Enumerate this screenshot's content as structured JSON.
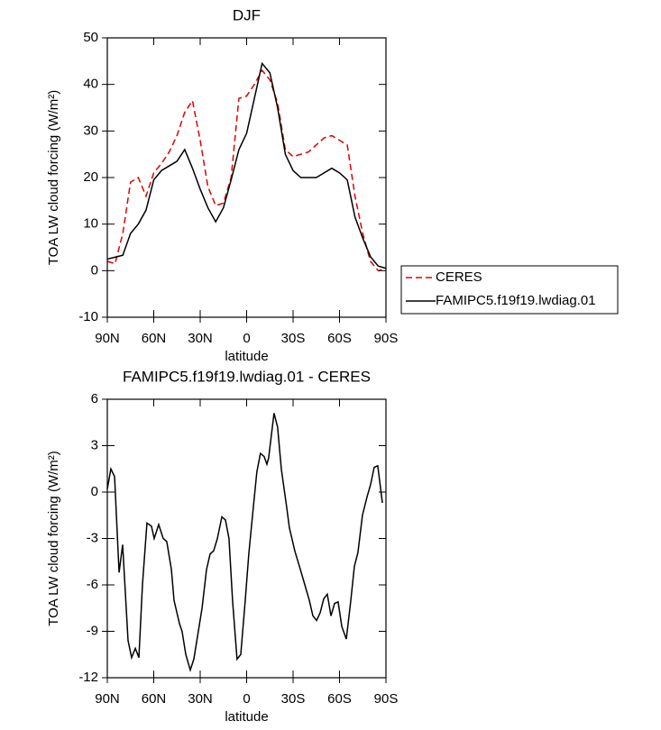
{
  "chart_data": [
    {
      "type": "line",
      "title": "DJF",
      "x_label": "latitude",
      "y_label": "TOA LW cloud forcing (W/m²)",
      "x": [
        90,
        85,
        80,
        75,
        70,
        65,
        60,
        55,
        50,
        45,
        40,
        35,
        30,
        25,
        20,
        15,
        10,
        5,
        0,
        -5,
        -10,
        -15,
        -20,
        -25,
        -30,
        -35,
        -40,
        -45,
        -50,
        -55,
        -60,
        -65,
        -70,
        -75,
        -80,
        -85,
        -90
      ],
      "xlim": [
        90,
        -90
      ],
      "xticks": [
        {
          "value": 90,
          "label": "90N"
        },
        {
          "value": 60,
          "label": "60N"
        },
        {
          "value": 30,
          "label": "30N"
        },
        0,
        {
          "value": -30,
          "label": "30S"
        },
        {
          "value": -60,
          "label": "60S"
        },
        {
          "value": -90,
          "label": "90S"
        }
      ],
      "ylim": [
        -10,
        50
      ],
      "yticks": [
        -10,
        0,
        10,
        20,
        30,
        40,
        50
      ],
      "legend": "right",
      "series": [
        {
          "name": "CERES",
          "color": "#e00000",
          "dash": true,
          "values": [
            2,
            1.5,
            8,
            19,
            20,
            16,
            21,
            23,
            25.5,
            29,
            34,
            36.5,
            28,
            18,
            14,
            14.5,
            20,
            37,
            37.5,
            40,
            43,
            41,
            36,
            26,
            24.5,
            25,
            25.5,
            27,
            28.5,
            29,
            28,
            27,
            16,
            8,
            2,
            0,
            0.5
          ]
        },
        {
          "name": "FAMIPC5.f19f19.lwdiag.01",
          "color": "#000000",
          "dash": false,
          "values": [
            2.5,
            2.9,
            3.3,
            8,
            10,
            13,
            19.5,
            21.5,
            22.5,
            23.5,
            26,
            22,
            17.5,
            13.5,
            10.5,
            13.5,
            19.5,
            26,
            29.5,
            37,
            44.5,
            42.5,
            35,
            25,
            21.5,
            20,
            20,
            20,
            21,
            22,
            21,
            19.5,
            11.5,
            7,
            3,
            1,
            0.5
          ]
        }
      ]
    },
    {
      "type": "line",
      "title": "FAMIPC5.f19f19.lwdiag.01 - CERES",
      "x_label": "latitude",
      "y_label": "TOA LW cloud forcing (W/m²)",
      "x": [
        90,
        87.7,
        85.3,
        82.4,
        80.1,
        76.6,
        74.3,
        71.9,
        69.6,
        67.3,
        64.4,
        61.5,
        59.7,
        56.8,
        53.9,
        51.6,
        48.6,
        46.9,
        43.4,
        41.7,
        39.3,
        36.4,
        34.1,
        31.2,
        28.8,
        25.9,
        23.6,
        21.3,
        18.9,
        16,
        13.7,
        11.4,
        9.1,
        6.2,
        3.8,
        0.9,
        -1.4,
        -4.3,
        -6.6,
        -8.9,
        -11.3,
        -13.1,
        -14.2,
        -17.7,
        -20,
        -22.4,
        -25.9,
        -27.6,
        -31.1,
        -34.7,
        -37.6,
        -40.5,
        -42.8,
        -45.2,
        -47.5,
        -49.8,
        -52.1,
        -54.5,
        -56.8,
        -59.1,
        -61.5,
        -64.4,
        -67.3,
        -69.6,
        -71.9,
        -74.8,
        -77.8,
        -80.1,
        -82.4,
        -84.7,
        -87.7
      ],
      "xlim": [
        90,
        -90
      ],
      "xticks": [
        {
          "value": 90,
          "label": "90N"
        },
        {
          "value": 60,
          "label": "60N"
        },
        {
          "value": 30,
          "label": "30N"
        },
        0,
        {
          "value": -30,
          "label": "30S"
        },
        {
          "value": -60,
          "label": "60S"
        },
        {
          "value": -90,
          "label": "90S"
        }
      ],
      "ylim": [
        -12,
        6
      ],
      "yticks": [
        -12,
        -9,
        -6,
        -3,
        0,
        3,
        6
      ],
      "series": [
        {
          "color": "#000000",
          "dash": false,
          "values": [
            0.2,
            1.5,
            1,
            -5.2,
            -3.4,
            -9.6,
            -10.7,
            -10.1,
            -10.7,
            -6,
            -2,
            -2.2,
            -3,
            -2.1,
            -3,
            -3.2,
            -5,
            -7,
            -8.5,
            -9,
            -10.5,
            -11.5,
            -10.8,
            -9,
            -7.5,
            -5,
            -4,
            -3.8,
            -3,
            -1.6,
            -1.8,
            -3,
            -7,
            -10.8,
            -10.5,
            -7,
            -4,
            -1,
            1.3,
            2.5,
            2.3,
            1.8,
            2.2,
            5.1,
            4.2,
            1.5,
            -1,
            -2.3,
            -3.8,
            -5,
            -6,
            -7,
            -8,
            -8.3,
            -7.8,
            -6.9,
            -6.6,
            -8,
            -7.2,
            -7.1,
            -8.7,
            -9.5,
            -7,
            -4.8,
            -3.9,
            -1.5,
            -0.3,
            0.5,
            1.6,
            1.7,
            -0.7
          ]
        }
      ]
    }
  ]
}
